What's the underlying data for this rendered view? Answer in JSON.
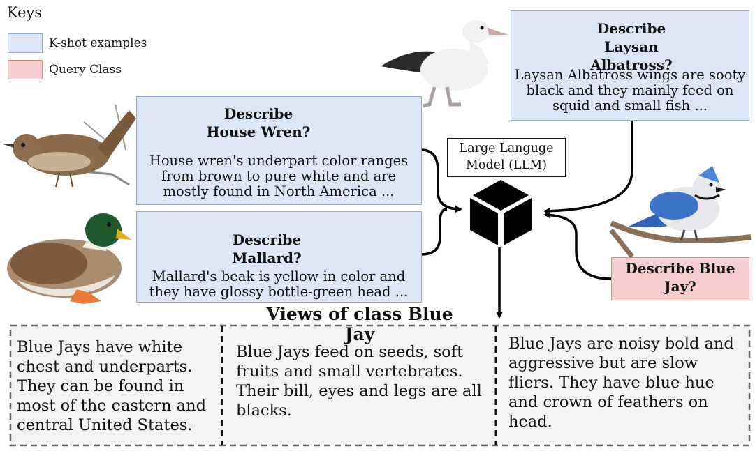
{
  "keys": {
    "title": "Keys",
    "items": [
      {
        "label": "K-shot examples",
        "color": "#dce6f6"
      },
      {
        "label": "Query Class",
        "color": "#f5cfcf"
      }
    ]
  },
  "examples": [
    {
      "question": "Describe House Wren?",
      "answer": "House wren's underpart color ranges from brown to pure white and are mostly found in North America ..."
    },
    {
      "question": "Describe Mallard?",
      "answer": "Mallard's beak is yellow in color and they have glossy bottle-green head ..."
    },
    {
      "question": "Describe Laysan Albatross?",
      "answer": "Laysan Albatross wings are sooty black and they mainly feed on squid and small fish ..."
    }
  ],
  "query": {
    "question": "Describe Blue Jay?"
  },
  "llm": {
    "label": "Large Languge Model (LLM)"
  },
  "views": {
    "title": "Views of class Blue Jay",
    "items": [
      "Blue Jays have white chest and underparts. They can be found in most of the eastern and central United States.",
      "Blue Jays feed on seeds, soft fruits and small vertebrates. Their bill, eyes and legs are all blacks.",
      "Blue Jays are noisy bold and aggressive but are slow fliers. They have blue hue and crown of feathers on head."
    ]
  },
  "colors": {
    "example_fill": "#dce6f6",
    "query_fill": "#f5cfcf",
    "views_fill": "#f3f3f3"
  },
  "icons": [
    "house-wren-image",
    "mallard-image",
    "laysan-albatross-image",
    "blue-jay-image",
    "person-laptop-icon",
    "woman-laptop-icon",
    "parent-child-laptop-icon",
    "llm-cube-icon"
  ]
}
